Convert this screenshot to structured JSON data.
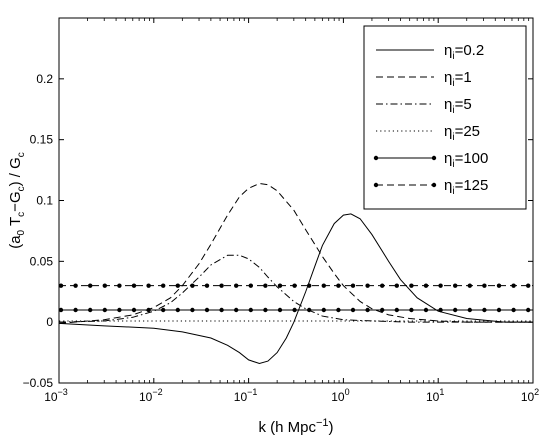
{
  "chart_data": {
    "type": "line",
    "xlabel": "k (h Mpc",
    "xlabel_sup": "−1",
    "xlabel_tail": ")",
    "ylabel": "(a0Tc−Gc) / Gc",
    "ylabel_parts": {
      "open": "(a",
      "sub_a": "0",
      "T": " T",
      "sub_T": "c",
      "minus": "−G",
      "sub_G": "c",
      "close": ") / G",
      "sub_G2": "c"
    },
    "x_scale": "log",
    "xlim": [
      0.001,
      100
    ],
    "ylim": [
      -0.05,
      0.25
    ],
    "x_ticks": [
      {
        "value": 0.001,
        "base": "10",
        "exp": "−3"
      },
      {
        "value": 0.01,
        "base": "10",
        "exp": "−2"
      },
      {
        "value": 0.1,
        "base": "10",
        "exp": "−1"
      },
      {
        "value": 1,
        "base": "10",
        "exp": "0"
      },
      {
        "value": 10,
        "base": "10",
        "exp": "1"
      },
      {
        "value": 100,
        "base": "10",
        "exp": "2"
      }
    ],
    "y_ticks": [
      {
        "value": -0.05,
        "label": "−0.05"
      },
      {
        "value": 0,
        "label": "0"
      },
      {
        "value": 0.05,
        "label": "0.05"
      },
      {
        "value": 0.1,
        "label": "0.1"
      },
      {
        "value": 0.15,
        "label": "0.15"
      },
      {
        "value": 0.2,
        "label": "0.2"
      }
    ],
    "grid": false,
    "legend_position": "top-right",
    "series": [
      {
        "name": "0.2",
        "style": "solid",
        "markers": false,
        "x": [
          0.001,
          0.003,
          0.01,
          0.02,
          0.04,
          0.06,
          0.08,
          0.1,
          0.13,
          0.16,
          0.2,
          0.25,
          0.3,
          0.4,
          0.5,
          0.6,
          0.8,
          1.0,
          1.2,
          1.5,
          2,
          3,
          4,
          6,
          10,
          20,
          50,
          100
        ],
        "y": [
          -0.001,
          -0.003,
          -0.005,
          -0.008,
          -0.013,
          -0.019,
          -0.025,
          -0.031,
          -0.034,
          -0.032,
          -0.025,
          -0.013,
          0.0,
          0.025,
          0.046,
          0.063,
          0.081,
          0.088,
          0.089,
          0.085,
          0.072,
          0.05,
          0.035,
          0.02,
          0.009,
          0.003,
          0.0,
          0.0
        ]
      },
      {
        "name": "1",
        "style": "dashed",
        "markers": false,
        "x": [
          0.001,
          0.003,
          0.006,
          0.01,
          0.015,
          0.02,
          0.03,
          0.04,
          0.06,
          0.08,
          0.1,
          0.13,
          0.16,
          0.2,
          0.3,
          0.4,
          0.6,
          0.8,
          1.0,
          1.5,
          2,
          3,
          5,
          10,
          20,
          50,
          100
        ],
        "y": [
          -0.001,
          0.002,
          0.006,
          0.012,
          0.02,
          0.03,
          0.048,
          0.064,
          0.088,
          0.103,
          0.11,
          0.114,
          0.113,
          0.108,
          0.092,
          0.076,
          0.054,
          0.04,
          0.03,
          0.017,
          0.011,
          0.006,
          0.003,
          0.001,
          0.0,
          0.0,
          0.0
        ]
      },
      {
        "name": "5",
        "style": "dashdot",
        "markers": false,
        "x": [
          0.001,
          0.003,
          0.006,
          0.01,
          0.015,
          0.02,
          0.03,
          0.04,
          0.06,
          0.08,
          0.1,
          0.13,
          0.16,
          0.2,
          0.3,
          0.4,
          0.6,
          1,
          2,
          5,
          10,
          20,
          100
        ],
        "y": [
          0.0,
          0.001,
          0.004,
          0.009,
          0.016,
          0.024,
          0.037,
          0.047,
          0.055,
          0.055,
          0.052,
          0.045,
          0.037,
          0.029,
          0.017,
          0.011,
          0.005,
          0.002,
          0.001,
          0.0,
          0.0,
          0.0,
          0.0
        ]
      },
      {
        "name": "25",
        "style": "dotted",
        "markers": false,
        "x": [
          0.001,
          0.01,
          0.1,
          1,
          10,
          100
        ],
        "y": [
          0.001,
          0.001,
          0.001,
          0.001,
          0.001,
          0.001
        ]
      },
      {
        "name": "100",
        "style": "solid",
        "markers": true,
        "x": [
          0.001,
          100
        ],
        "y": [
          0.01,
          0.01
        ]
      },
      {
        "name": "125",
        "style": "dashed",
        "markers": true,
        "x": [
          0.001,
          100
        ],
        "y": [
          0.03,
          0.03
        ]
      }
    ],
    "legend_symbol": "η",
    "legend_sub": "i",
    "legend_eq": "="
  }
}
